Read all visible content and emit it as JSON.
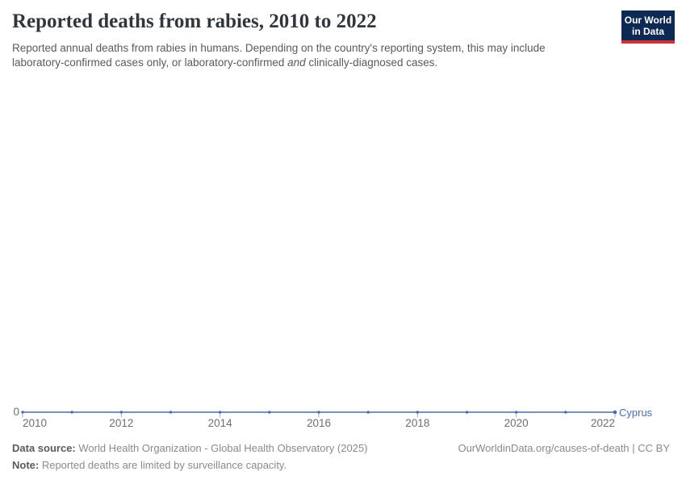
{
  "header": {
    "title": "Reported deaths from rabies, 2010 to 2022",
    "subtitle": {
      "line1": "Reported annual deaths from rabies in humans. Depending on the country's reporting system, this may include",
      "line2_before_italic": "laboratory-confirmed cases only, or laboratory-confirmed ",
      "italic_word": "and",
      "line2_after_italic": " clinically-diagnosed cases."
    }
  },
  "logo": {
    "line1": "Our World",
    "line2": "in Data"
  },
  "chart_data": {
    "type": "line",
    "title": "Reported deaths from rabies, 2010 to 2022",
    "x": [
      2010,
      2011,
      2012,
      2013,
      2014,
      2015,
      2016,
      2017,
      2018,
      2019,
      2020,
      2021,
      2022
    ],
    "series": [
      {
        "name": "Cyprus",
        "values": [
          0,
          0,
          0,
          0,
          0,
          0,
          0,
          0,
          0,
          0,
          0,
          0,
          0
        ],
        "color": "#4b6cae"
      }
    ],
    "x_tick_labels": [
      2010,
      2012,
      2014,
      2016,
      2018,
      2020,
      2022
    ],
    "y_axis_labels": [
      "0"
    ],
    "ylim": [
      0,
      0
    ],
    "xlabel": "",
    "ylabel": "",
    "grid": false,
    "legend_position": "inline-right-of-line-end"
  },
  "footer": {
    "source_label": "Data source:",
    "source_text": " World Health Organization - Global Health Observatory (2025)",
    "note_label": "Note:",
    "note_text": " Reported deaths are limited by surveillance capacity.",
    "attribution": "OurWorldinData.org/causes-of-death | CC BY"
  },
  "colors": {
    "line": "#4b6cae",
    "axis_tick": "#9fb0cb",
    "axis_text": "#6e6e6e",
    "logo_bg": "#0e2a54",
    "logo_accent": "#cd3235",
    "title_text": "#30363d",
    "subtitle_text": "#5a5a5a",
    "footer_text": "#8a8a8a"
  }
}
